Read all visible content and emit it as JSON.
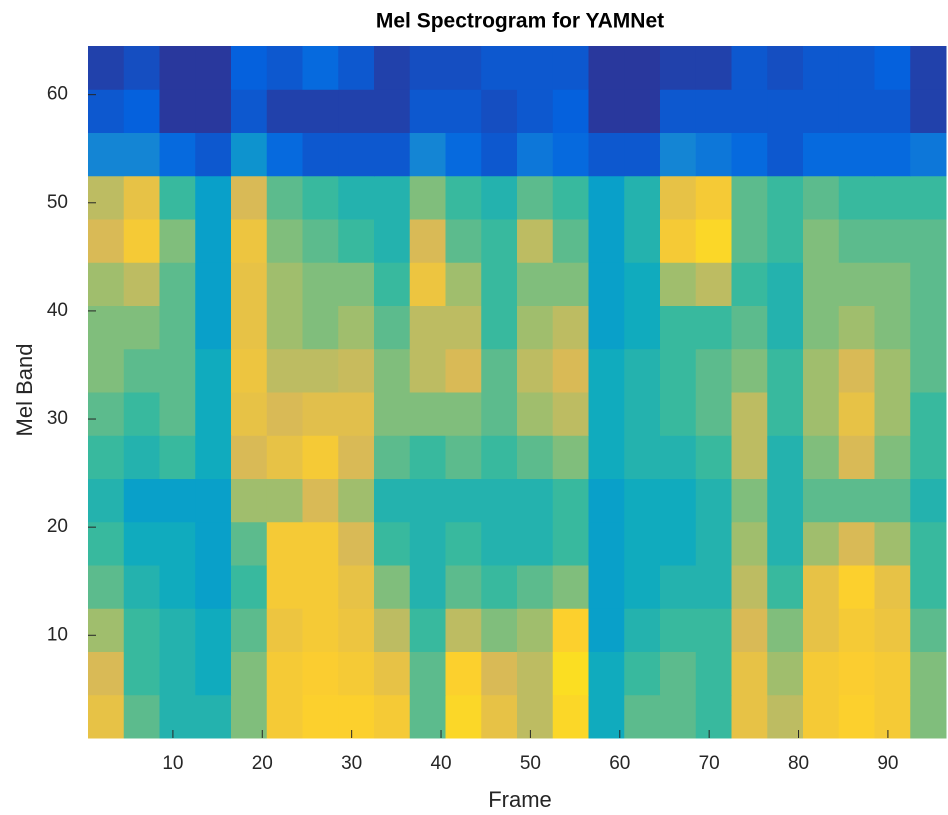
{
  "chart_data": {
    "type": "heatmap",
    "title": "Mel Spectrogram for YAMNet",
    "xlabel": "Frame",
    "ylabel": "Mel Band",
    "xlim": [
      0.5,
      96.5
    ],
    "ylim": [
      0.5,
      64.5
    ],
    "xticks": [
      10,
      20,
      30,
      40,
      50,
      60,
      70,
      80,
      90
    ],
    "yticks": [
      10,
      20,
      30,
      40,
      50,
      60
    ],
    "xbins": [
      0.5,
      4.5,
      8.5,
      12.5,
      16.5,
      20.5,
      24.5,
      28.5,
      32.5,
      36.5,
      40.5,
      44.5,
      48.5,
      52.5,
      56.5,
      60.5,
      64.5,
      68.5,
      72.5,
      76.5,
      80.5,
      84.5,
      88.5,
      92.5,
      96.5
    ],
    "ybins": [
      0.5,
      4.5,
      8.5,
      12.5,
      16.5,
      20.5,
      24.5,
      28.5,
      32.5,
      36.5,
      40.5,
      44.5,
      48.5,
      52.5,
      56.5,
      60.5,
      64.5
    ],
    "clim": [
      0,
      1
    ],
    "colormap": [
      "#352a87",
      "#0363e1",
      "#1485d4",
      "#06a7c6",
      "#38b99e",
      "#92bf73",
      "#d9ba56",
      "#fcce2e",
      "#f9fb0e"
    ],
    "z": [
      [
        0.8,
        0.55,
        0.45,
        0.45,
        0.6,
        0.85,
        0.88,
        0.88,
        0.85,
        0.55,
        0.9,
        0.8,
        0.7,
        0.9,
        0.4,
        0.55,
        0.55,
        0.5,
        0.8,
        0.7,
        0.85,
        0.88,
        0.85,
        0.6
      ],
      [
        0.75,
        0.5,
        0.45,
        0.4,
        0.6,
        0.85,
        0.87,
        0.85,
        0.8,
        0.55,
        0.88,
        0.75,
        0.7,
        0.92,
        0.4,
        0.5,
        0.55,
        0.5,
        0.8,
        0.65,
        0.85,
        0.87,
        0.85,
        0.6
      ],
      [
        0.65,
        0.5,
        0.45,
        0.4,
        0.55,
        0.82,
        0.85,
        0.82,
        0.7,
        0.5,
        0.7,
        0.6,
        0.65,
        0.88,
        0.35,
        0.45,
        0.5,
        0.5,
        0.75,
        0.6,
        0.8,
        0.85,
        0.82,
        0.55
      ],
      [
        0.55,
        0.45,
        0.4,
        0.35,
        0.5,
        0.85,
        0.85,
        0.8,
        0.6,
        0.45,
        0.55,
        0.5,
        0.55,
        0.6,
        0.35,
        0.4,
        0.45,
        0.45,
        0.7,
        0.5,
        0.8,
        0.88,
        0.8,
        0.5
      ],
      [
        0.5,
        0.4,
        0.4,
        0.35,
        0.55,
        0.85,
        0.85,
        0.75,
        0.5,
        0.45,
        0.5,
        0.45,
        0.45,
        0.5,
        0.35,
        0.4,
        0.4,
        0.45,
        0.65,
        0.45,
        0.65,
        0.75,
        0.65,
        0.5
      ],
      [
        0.45,
        0.35,
        0.35,
        0.35,
        0.65,
        0.65,
        0.75,
        0.65,
        0.45,
        0.45,
        0.45,
        0.45,
        0.45,
        0.5,
        0.35,
        0.4,
        0.4,
        0.45,
        0.6,
        0.45,
        0.55,
        0.55,
        0.55,
        0.45
      ],
      [
        0.5,
        0.45,
        0.5,
        0.4,
        0.75,
        0.8,
        0.85,
        0.75,
        0.55,
        0.5,
        0.55,
        0.5,
        0.55,
        0.6,
        0.4,
        0.45,
        0.45,
        0.5,
        0.7,
        0.45,
        0.6,
        0.75,
        0.6,
        0.5
      ],
      [
        0.55,
        0.5,
        0.55,
        0.4,
        0.8,
        0.75,
        0.78,
        0.78,
        0.6,
        0.6,
        0.6,
        0.55,
        0.65,
        0.7,
        0.4,
        0.45,
        0.5,
        0.55,
        0.7,
        0.5,
        0.65,
        0.8,
        0.65,
        0.5
      ],
      [
        0.6,
        0.55,
        0.55,
        0.4,
        0.82,
        0.7,
        0.7,
        0.72,
        0.6,
        0.7,
        0.75,
        0.55,
        0.7,
        0.75,
        0.4,
        0.45,
        0.5,
        0.55,
        0.6,
        0.5,
        0.65,
        0.75,
        0.65,
        0.55
      ],
      [
        0.6,
        0.6,
        0.55,
        0.35,
        0.8,
        0.65,
        0.6,
        0.65,
        0.55,
        0.7,
        0.7,
        0.5,
        0.65,
        0.7,
        0.35,
        0.4,
        0.5,
        0.5,
        0.55,
        0.45,
        0.6,
        0.65,
        0.6,
        0.55
      ],
      [
        0.65,
        0.7,
        0.55,
        0.35,
        0.8,
        0.65,
        0.6,
        0.6,
        0.5,
        0.82,
        0.65,
        0.5,
        0.6,
        0.6,
        0.35,
        0.4,
        0.65,
        0.7,
        0.5,
        0.45,
        0.6,
        0.6,
        0.6,
        0.55
      ],
      [
        0.75,
        0.85,
        0.6,
        0.35,
        0.82,
        0.6,
        0.55,
        0.5,
        0.45,
        0.75,
        0.55,
        0.5,
        0.7,
        0.55,
        0.35,
        0.45,
        0.85,
        0.9,
        0.55,
        0.5,
        0.6,
        0.55,
        0.55,
        0.55
      ],
      [
        0.7,
        0.8,
        0.5,
        0.35,
        0.75,
        0.55,
        0.5,
        0.45,
        0.45,
        0.6,
        0.5,
        0.45,
        0.55,
        0.5,
        0.35,
        0.45,
        0.8,
        0.85,
        0.55,
        0.5,
        0.55,
        0.5,
        0.5,
        0.5
      ],
      [
        0.25,
        0.25,
        0.15,
        0.1,
        0.3,
        0.15,
        0.1,
        0.1,
        0.1,
        0.25,
        0.15,
        0.1,
        0.2,
        0.15,
        0.1,
        0.1,
        0.25,
        0.2,
        0.15,
        0.1,
        0.15,
        0.15,
        0.15,
        0.2
      ],
      [
        0.1,
        0.12,
        0.03,
        0.03,
        0.1,
        0.05,
        0.05,
        0.05,
        0.05,
        0.1,
        0.1,
        0.08,
        0.1,
        0.12,
        0.03,
        0.03,
        0.1,
        0.1,
        0.1,
        0.1,
        0.1,
        0.1,
        0.1,
        0.05
      ],
      [
        0.05,
        0.08,
        0.03,
        0.03,
        0.12,
        0.1,
        0.15,
        0.1,
        0.05,
        0.08,
        0.08,
        0.1,
        0.1,
        0.1,
        0.03,
        0.03,
        0.05,
        0.05,
        0.1,
        0.08,
        0.1,
        0.1,
        0.12,
        0.05
      ]
    ]
  }
}
